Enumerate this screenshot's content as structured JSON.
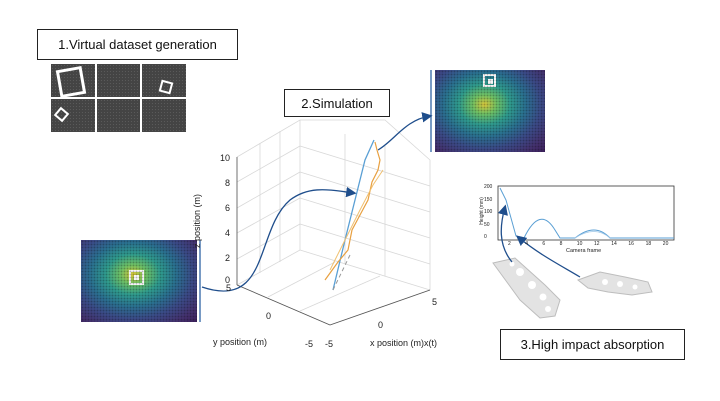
{
  "labels": {
    "step1": "1.Virtual dataset generation",
    "step2": "2.Simulation",
    "step3": "3.High impact absorption"
  },
  "plot3d": {
    "z_label": "z position (m)",
    "y_label": "y position (m)",
    "x_label": "x position (m)x(t)",
    "z_ticks": [
      "10",
      "8",
      "6",
      "4",
      "2",
      "0"
    ],
    "y_ticks": [
      "5",
      "0",
      "-5"
    ],
    "x_ticks": [
      "-5",
      "0",
      "5"
    ]
  },
  "height_plot": {
    "ylabel": "Height (mm)",
    "xlabel": "Camera frame",
    "yticks": [
      "200",
      "150",
      "100",
      "50",
      "0"
    ],
    "xticks": [
      "2",
      "4",
      "6",
      "8",
      "10",
      "12",
      "14",
      "16",
      "18",
      "20"
    ]
  },
  "colors": {
    "trajectory_blue": "#5a9fd4",
    "trajectory_orange": "#e8a040",
    "arrow": "#1f4e8c"
  }
}
